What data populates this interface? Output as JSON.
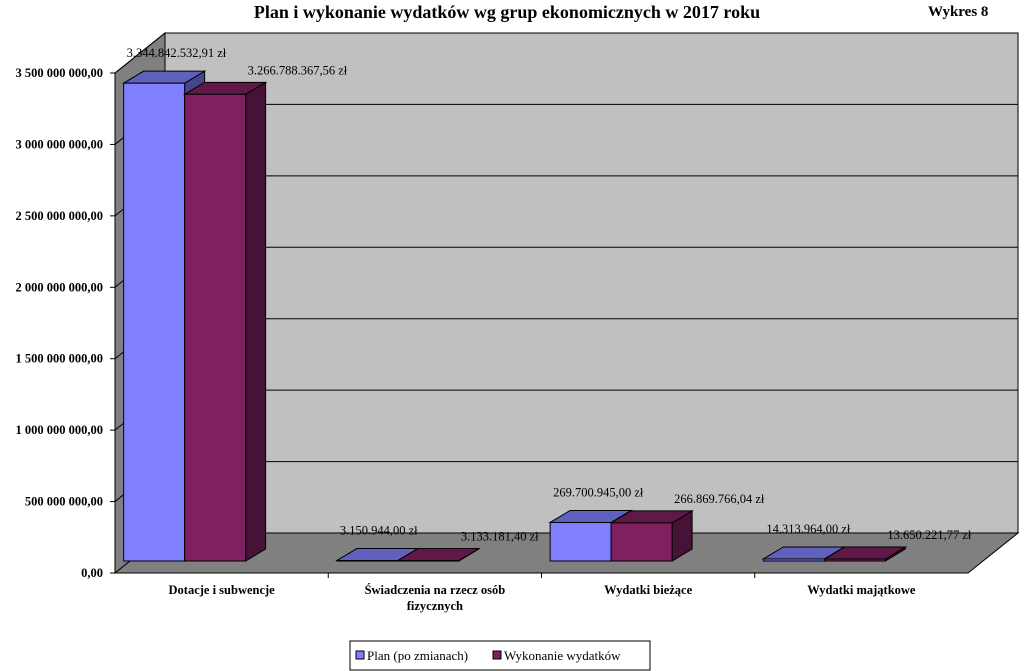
{
  "header": {
    "title": "Plan i wykonanie wydatków wg grup ekonomicznych w 2017 roku",
    "figure_label": "Wykres  8"
  },
  "chart_data": {
    "type": "bar",
    "title": "Plan i wykonanie wydatków wg grup ekonomicznych w 2017 roku",
    "xlabel": "",
    "ylabel": "",
    "ylim": [
      0,
      3500000000
    ],
    "ytick_values": [
      0,
      500000000,
      1000000000,
      1500000000,
      2000000000,
      2500000000,
      3000000000,
      3500000000
    ],
    "ytick_labels": [
      "0,00",
      "500 000 000,00",
      "1 000 000 000,00",
      "1 500 000 000,00",
      "2 000 000 000,00",
      "2 500 000 000,00",
      "3 000 000 000,00",
      "3 500 000 000,00"
    ],
    "categories": [
      [
        "Dotacje i subwencje"
      ],
      [
        "Świadczenia na rzecz osób",
        "fizycznych"
      ],
      [
        "Wydatki bieżące"
      ],
      [
        "Wydatki majątkowe"
      ]
    ],
    "series": [
      {
        "name": "Plan (po zmianach)",
        "color": "#8080ff",
        "values": [
          3344842532.91,
          3150944.0,
          269700945.0,
          14313964.0
        ],
        "labels": [
          "3.344.842.532,91  zł",
          "3.150.944,00  zł",
          "269.700.945,00  zł",
          "14.313.964,00  zł"
        ]
      },
      {
        "name": "Wykonanie wydatków",
        "color": "#802060",
        "values": [
          3266788367.56,
          3133181.4,
          266869766.04,
          13650221.77
        ],
        "labels": [
          "3.266.788.367,56  zł",
          "3.133.181,40  zł",
          "266.869.766,04  zł",
          "13.650.221,77  zł"
        ]
      }
    ],
    "grid": true,
    "style": "3d-clustered-column",
    "legend": "bottom-center"
  }
}
